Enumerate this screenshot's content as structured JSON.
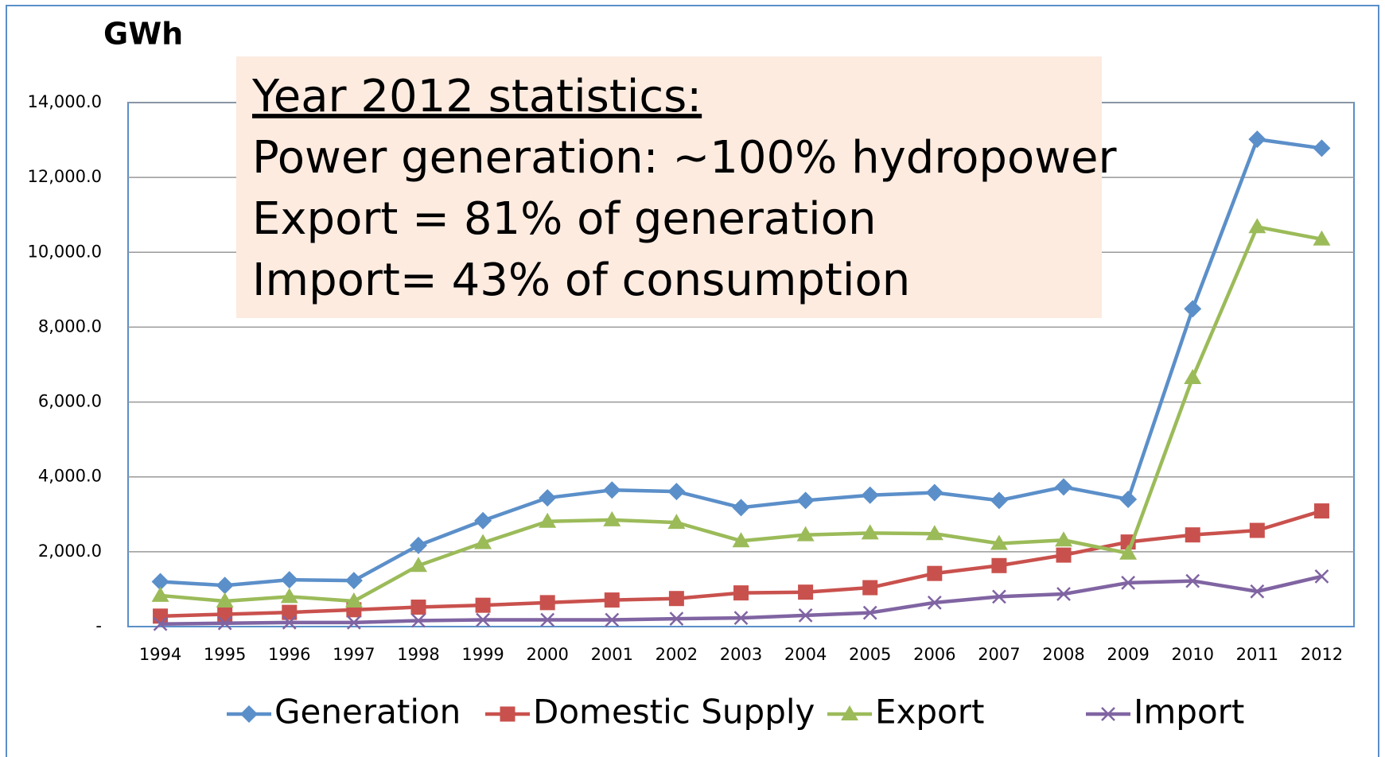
{
  "chart_data": {
    "type": "line",
    "ylabel": "GWh",
    "annotations": [
      "Year 2012 statistics:",
      "Power generation: ~100% hydropower",
      "Export = 81% of generation",
      "Import= 43% of consumption"
    ],
    "categories": [
      "1994",
      "1995",
      "1996",
      "1997",
      "1998",
      "1999",
      "2000",
      "2001",
      "2002",
      "2003",
      "2004",
      "2005",
      "2006",
      "2007",
      "2008",
      "2009",
      "2010",
      "2011",
      "2012"
    ],
    "series": [
      {
        "name": "Generation",
        "color": "#5b8fc9",
        "marker": "diamond",
        "values": [
          1200,
          1100,
          1250,
          1230,
          2170,
          2830,
          3440,
          3650,
          3610,
          3180,
          3370,
          3510,
          3580,
          3370,
          3730,
          3400,
          8490,
          13020,
          12780
        ]
      },
      {
        "name": "Domestic Supply",
        "color": "#c9514d",
        "marker": "square",
        "values": [
          280,
          330,
          380,
          450,
          520,
          570,
          640,
          710,
          750,
          900,
          920,
          1040,
          1420,
          1630,
          1910,
          2260,
          2450,
          2570,
          3090
        ]
      },
      {
        "name": "Export",
        "color": "#9bbb59",
        "marker": "triangle",
        "values": [
          830,
          680,
          800,
          680,
          1630,
          2240,
          2810,
          2850,
          2780,
          2290,
          2450,
          2500,
          2480,
          2220,
          2310,
          1960,
          6650,
          10680,
          10350
        ]
      },
      {
        "name": "Import",
        "color": "#8064a2",
        "marker": "x",
        "values": [
          70,
          90,
          110,
          110,
          160,
          180,
          180,
          180,
          210,
          230,
          300,
          370,
          640,
          800,
          870,
          1170,
          1220,
          940,
          1340
        ]
      }
    ],
    "ylim": [
      0,
      14000
    ],
    "yticks": [
      {
        "value": 0,
        "label": "-"
      },
      {
        "value": 2000,
        "label": "2,000.0"
      },
      {
        "value": 4000,
        "label": "4,000.0"
      },
      {
        "value": 6000,
        "label": "6,000.0"
      },
      {
        "value": 8000,
        "label": "8,000.0"
      },
      {
        "value": 10000,
        "label": "10,000.0"
      },
      {
        "value": 12000,
        "label": "12,000.0"
      },
      {
        "value": 14000,
        "label": "14,000.0"
      }
    ],
    "grid": true
  }
}
